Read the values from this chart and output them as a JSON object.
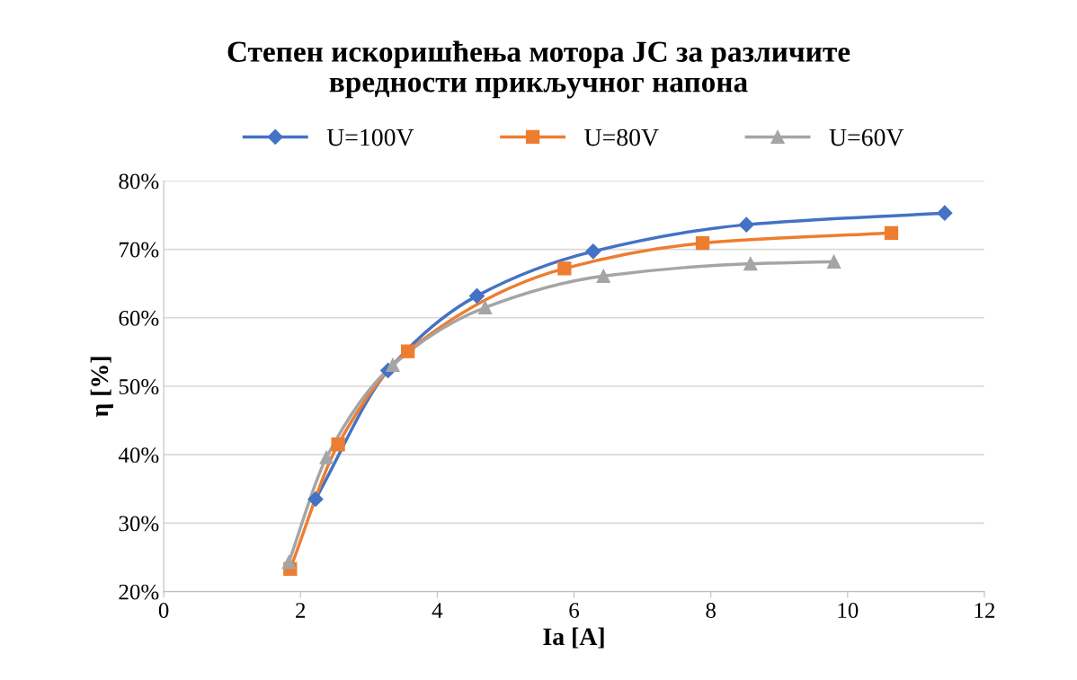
{
  "chart_data": {
    "type": "line",
    "title": "Степен искоришћења мотора ЈС за различите\nвредности прикључног напона",
    "xlabel": "Ia [A]",
    "ylabel": "η [%]",
    "series": [
      {
        "name": "U=100V",
        "color": "#4472c4",
        "marker": "diamond",
        "x": [
          2.22,
          3.28,
          4.58,
          6.28,
          8.52,
          11.42
        ],
        "values": [
          33.5,
          52.3,
          63.2,
          69.7,
          73.6,
          75.3
        ]
      },
      {
        "name": "U=80V",
        "color": "#ed7d31",
        "marker": "square",
        "x": [
          1.85,
          2.55,
          3.57,
          5.86,
          7.88,
          10.64
        ],
        "values": [
          23.3,
          41.5,
          55.1,
          67.2,
          70.9,
          72.4
        ]
      },
      {
        "name": "U=60V",
        "color": "#a5a5a5",
        "marker": "triangle",
        "x": [
          1.83,
          2.38,
          3.35,
          4.7,
          6.43,
          8.58,
          9.8
        ],
        "values": [
          24.3,
          39.6,
          53.1,
          61.5,
          66.1,
          67.9,
          68.2
        ]
      }
    ],
    "xlim": [
      0,
      12
    ],
    "xticks": [
      0,
      2,
      4,
      6,
      8,
      10,
      12
    ],
    "ylim": [
      20,
      80
    ],
    "yticks": [
      {
        "value": 20,
        "label": "20%"
      },
      {
        "value": 30,
        "label": "30%"
      },
      {
        "value": 40,
        "label": "40%"
      },
      {
        "value": 50,
        "label": "50%"
      },
      {
        "value": 60,
        "label": "60%"
      },
      {
        "value": 70,
        "label": "70%"
      },
      {
        "value": 80,
        "label": "80%"
      }
    ],
    "grid": "y",
    "legend": "top",
    "line_style": "solid"
  }
}
